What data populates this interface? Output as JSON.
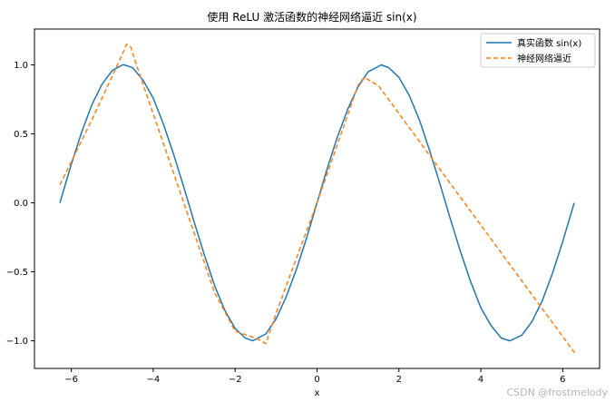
{
  "chart_data": {
    "type": "line",
    "title": "使用 ReLU 激活函数的神经网络逼近 sin(x)",
    "xlabel": "x",
    "ylabel": "",
    "xlim": [
      -6.9,
      6.9
    ],
    "ylim": [
      -1.2,
      1.26
    ],
    "xticks": [
      -6,
      -4,
      -2,
      0,
      2,
      4,
      6
    ],
    "yticks": [
      -1.0,
      -0.5,
      0.0,
      0.5,
      1.0
    ],
    "xtick_labels": [
      "−6",
      "−4",
      "−2",
      "0",
      "2",
      "4",
      "6"
    ],
    "ytick_labels": [
      "−1.0",
      "−0.5",
      "0.0",
      "0.5",
      "1.0"
    ],
    "grid": false,
    "legend_position": "top-right",
    "series": [
      {
        "name": "真实函数 sin(x)",
        "color": "#1f77b4",
        "style": "solid",
        "x": [
          -6.28,
          -6.0,
          -5.75,
          -5.5,
          -5.25,
          -5.0,
          -4.75,
          -4.71,
          -4.5,
          -4.25,
          -4.0,
          -3.75,
          -3.5,
          -3.25,
          -3.0,
          -2.75,
          -2.5,
          -2.25,
          -2.0,
          -1.75,
          -1.57,
          -1.25,
          -1.0,
          -0.75,
          -0.5,
          -0.25,
          0.0,
          0.25,
          0.5,
          0.75,
          1.0,
          1.25,
          1.57,
          1.75,
          2.0,
          2.25,
          2.5,
          2.75,
          3.0,
          3.25,
          3.5,
          3.75,
          4.0,
          4.25,
          4.5,
          4.71,
          5.0,
          5.25,
          5.5,
          5.75,
          6.0,
          6.28
        ],
        "y": [
          0.0,
          0.28,
          0.51,
          0.71,
          0.86,
          0.96,
          1.0,
          1.0,
          0.98,
          0.89,
          0.76,
          0.57,
          0.35,
          0.11,
          -0.14,
          -0.38,
          -0.6,
          -0.78,
          -0.91,
          -0.98,
          -1.0,
          -0.95,
          -0.84,
          -0.68,
          -0.48,
          -0.25,
          0.0,
          0.25,
          0.48,
          0.68,
          0.84,
          0.95,
          1.0,
          0.98,
          0.91,
          0.78,
          0.6,
          0.38,
          0.14,
          -0.11,
          -0.35,
          -0.57,
          -0.76,
          -0.89,
          -0.98,
          -1.0,
          -0.96,
          -0.86,
          -0.71,
          -0.51,
          -0.28,
          0.0
        ]
      },
      {
        "name": "神经网络逼近",
        "color": "#ff7f0e",
        "style": "dashed",
        "x": [
          -6.28,
          -5.5,
          -4.75,
          -4.65,
          -4.55,
          -4.4,
          -2.5,
          -2.0,
          -1.5,
          -1.25,
          -1.0,
          0.0,
          1.0,
          1.15,
          1.5,
          6.3
        ],
        "y": [
          0.13,
          0.6,
          1.08,
          1.15,
          1.13,
          0.99,
          -0.65,
          -0.93,
          -0.98,
          -1.02,
          -0.8,
          0.0,
          0.85,
          0.91,
          0.85,
          -1.09
        ]
      }
    ]
  },
  "watermark": "CSDN @frostmelody"
}
